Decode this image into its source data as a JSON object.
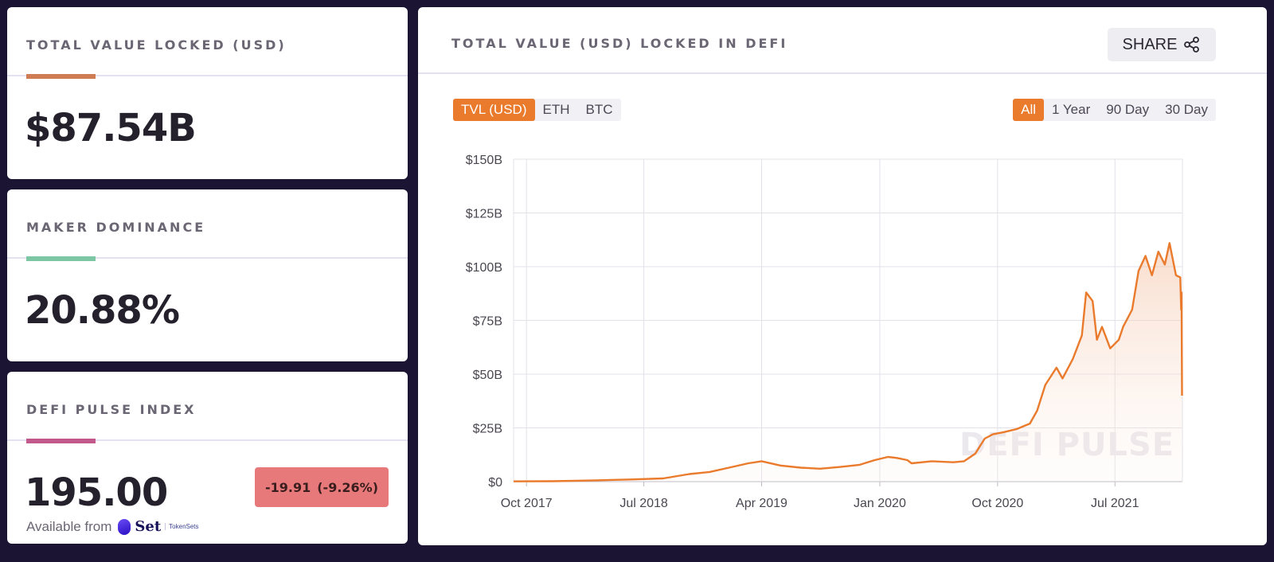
{
  "stats": {
    "tvl": {
      "title": "TOTAL VALUE LOCKED (USD)",
      "value": "$87.54B",
      "accent": "#cf7b54"
    },
    "maker": {
      "title": "MAKER DOMINANCE",
      "value": "20.88%",
      "accent": "#7cc6a4"
    },
    "index": {
      "title": "DEFI PULSE INDEX",
      "value": "195.00",
      "accent": "#c2588c",
      "change_abs": "-19.91",
      "change_pct": "(-9.26%)",
      "available_text": "Available from",
      "set_word": "Set",
      "set_sub": "TokenSets"
    }
  },
  "chart_panel": {
    "title": "TOTAL VALUE (USD) LOCKED IN DEFI",
    "share_label": "SHARE",
    "share_icon": "share-icon",
    "currency_tabs": [
      "TVL (USD)",
      "ETH",
      "BTC"
    ],
    "currency_active": "TVL (USD)",
    "range_tabs": [
      "All",
      "1 Year",
      "90 Day",
      "30 Day"
    ],
    "range_active": "All",
    "watermark": "DEFI PULSE"
  },
  "chart_data": {
    "type": "area",
    "title": "",
    "xlabel": "",
    "ylabel": "",
    "ylim": [
      0,
      150
    ],
    "y_ticks": [
      "$0",
      "$25B",
      "$50B",
      "$75B",
      "$100B",
      "$125B",
      "$150B"
    ],
    "x_tick_labels": [
      "Oct 2017",
      "Jul 2018",
      "Apr 2019",
      "Jan 2020",
      "Oct 2020",
      "Jul 2021"
    ],
    "x_tick_dates": [
      "2017-10-01",
      "2018-07-01",
      "2019-04-01",
      "2020-01-01",
      "2020-10-01",
      "2021-07-01"
    ],
    "x_range": [
      "2017-09-01",
      "2021-12-05"
    ],
    "grid": true,
    "line_color": "#ea7a2c",
    "series": [
      {
        "x": [
          "2017-09-01",
          "2017-12-01",
          "2018-03-01",
          "2018-06-01",
          "2018-08-15",
          "2018-10-15",
          "2018-12-01",
          "2019-01-15",
          "2019-03-01",
          "2019-04-01",
          "2019-05-15",
          "2019-07-01",
          "2019-08-15",
          "2019-10-01",
          "2019-11-15",
          "2019-12-20",
          "2020-01-20",
          "2020-02-10",
          "2020-03-05",
          "2020-03-15",
          "2020-05-01",
          "2020-06-20",
          "2020-07-15",
          "2020-08-10",
          "2020-09-01",
          "2020-09-20",
          "2020-10-15",
          "2020-11-15",
          "2020-12-15",
          "2021-01-01",
          "2021-01-20",
          "2021-02-15",
          "2021-03-01",
          "2021-03-25",
          "2021-04-15",
          "2021-04-25",
          "2021-05-10",
          "2021-05-20",
          "2021-06-01",
          "2021-06-20",
          "2021-07-10",
          "2021-07-20",
          "2021-08-10",
          "2021-08-25",
          "2021-09-10",
          "2021-09-25",
          "2021-10-10",
          "2021-10-25",
          "2021-11-05",
          "2021-11-20",
          "2021-11-30",
          "2021-12-02",
          "2021-12-03",
          "2021-12-04"
        ],
        "y": [
          0.1,
          0.2,
          0.5,
          1.0,
          1.5,
          3.5,
          4.5,
          6.5,
          8.5,
          9.5,
          7.5,
          6.5,
          6.0,
          6.8,
          7.8,
          10.0,
          11.5,
          11.0,
          10.0,
          8.5,
          9.5,
          9.0,
          9.5,
          13.0,
          20.0,
          22.0,
          23.0,
          24.5,
          27.0,
          33.0,
          45.0,
          53.0,
          48.0,
          57.0,
          68.0,
          88.0,
          84.0,
          66.0,
          72.0,
          62.0,
          66.0,
          72.0,
          80.0,
          98.0,
          105.0,
          96.0,
          107.0,
          101.0,
          111.0,
          96.0,
          95.0,
          80.0,
          88.0,
          40.0
        ]
      }
    ]
  }
}
